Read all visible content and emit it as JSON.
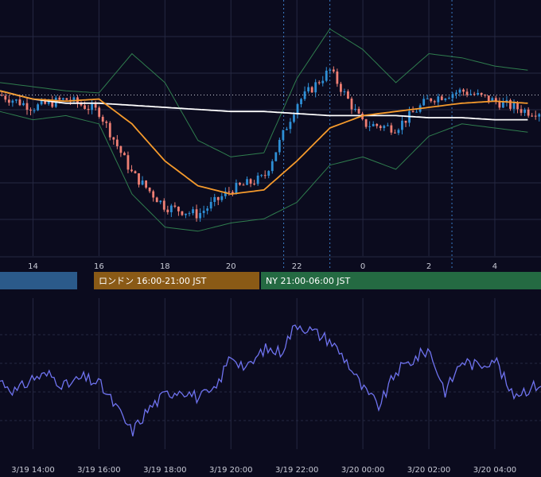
{
  "colors": {
    "background": "#0b0b1e",
    "grid": "#252842",
    "candle_up": "#2e8fd6",
    "candle_down": "#ef7f74",
    "bollinger": "#2f7d4e",
    "ma_short": "#f59a2c",
    "ma_long": "#ffffff",
    "oscillator": "#6f73f0",
    "session_tokyo": "#2b5a8a",
    "session_london": "#8a5a16",
    "session_ny": "#246a42",
    "marker_line": "#3b7bc4"
  },
  "sessions": [
    {
      "name": "tokyo",
      "label": ""
    },
    {
      "name": "london",
      "label": "ロンドン 16:00-21:00 JST"
    },
    {
      "name": "ny",
      "label": "NY 21:00-06:00 JST"
    }
  ],
  "chart_data": [
    {
      "type": "candlestick",
      "title": "",
      "indicators": [
        "bollinger_bands",
        "moving_average_short",
        "moving_average_long"
      ],
      "x_hours": [
        13,
        14,
        15,
        16,
        17,
        18,
        19,
        20,
        21,
        22,
        23,
        24,
        25,
        26,
        27,
        28,
        29
      ],
      "x_range": [
        13.0,
        29.4
      ],
      "x_tick_labels": [
        "14",
        "16",
        "18",
        "20",
        "22",
        "0",
        "2",
        "4"
      ],
      "close": [
        0.66,
        0.6,
        0.64,
        0.58,
        0.28,
        0.12,
        0.08,
        0.2,
        0.26,
        0.62,
        0.78,
        0.52,
        0.5,
        0.64,
        0.68,
        0.63,
        0.58
      ],
      "ma_short": [
        0.68,
        0.64,
        0.63,
        0.64,
        0.52,
        0.34,
        0.22,
        0.18,
        0.2,
        0.34,
        0.5,
        0.56,
        0.58,
        0.6,
        0.62,
        0.63,
        0.62
      ],
      "ma_long": [
        0.68,
        0.64,
        0.62,
        0.62,
        0.61,
        0.6,
        0.59,
        0.58,
        0.58,
        0.57,
        0.56,
        0.56,
        0.56,
        0.55,
        0.55,
        0.54,
        0.54
      ],
      "bb_upper": [
        0.72,
        0.7,
        0.68,
        0.67,
        0.86,
        0.72,
        0.44,
        0.36,
        0.38,
        0.74,
        0.98,
        0.88,
        0.72,
        0.86,
        0.84,
        0.8,
        0.78
      ],
      "bb_lower": [
        0.58,
        0.54,
        0.56,
        0.52,
        0.18,
        0.02,
        0.0,
        0.04,
        0.06,
        0.14,
        0.32,
        0.36,
        0.3,
        0.46,
        0.52,
        0.5,
        0.48
      ],
      "y_range": [
        -0.12,
        1.12
      ],
      "vertical_markers_hours": [
        21.6,
        23.0,
        26.7
      ],
      "dotted_reference_level": 0.66
    },
    {
      "type": "line",
      "title": "",
      "x_hours": [
        13,
        13.5,
        14,
        14.5,
        15,
        15.5,
        16,
        16.5,
        17,
        17.5,
        18,
        18.5,
        19,
        19.5,
        20,
        20.5,
        21,
        21.5,
        22,
        22.5,
        23,
        23.5,
        24,
        24.5,
        25,
        25.5,
        26,
        26.5,
        27,
        27.5,
        28,
        28.5,
        29,
        29.4
      ],
      "values": [
        0.48,
        0.4,
        0.5,
        0.52,
        0.44,
        0.5,
        0.46,
        0.3,
        0.12,
        0.28,
        0.38,
        0.42,
        0.36,
        0.4,
        0.66,
        0.56,
        0.7,
        0.68,
        0.88,
        0.82,
        0.76,
        0.62,
        0.42,
        0.3,
        0.54,
        0.62,
        0.7,
        0.4,
        0.62,
        0.58,
        0.64,
        0.38,
        0.42,
        0.46
      ],
      "y_range": [
        0.0,
        1.0
      ],
      "x_tick_labels": [
        "3/19 14:00",
        "3/19 16:00",
        "3/19 18:00",
        "3/19 20:00",
        "3/19 22:00",
        "3/20 00:00",
        "3/20 02:00",
        "3/20 04:00"
      ]
    }
  ]
}
